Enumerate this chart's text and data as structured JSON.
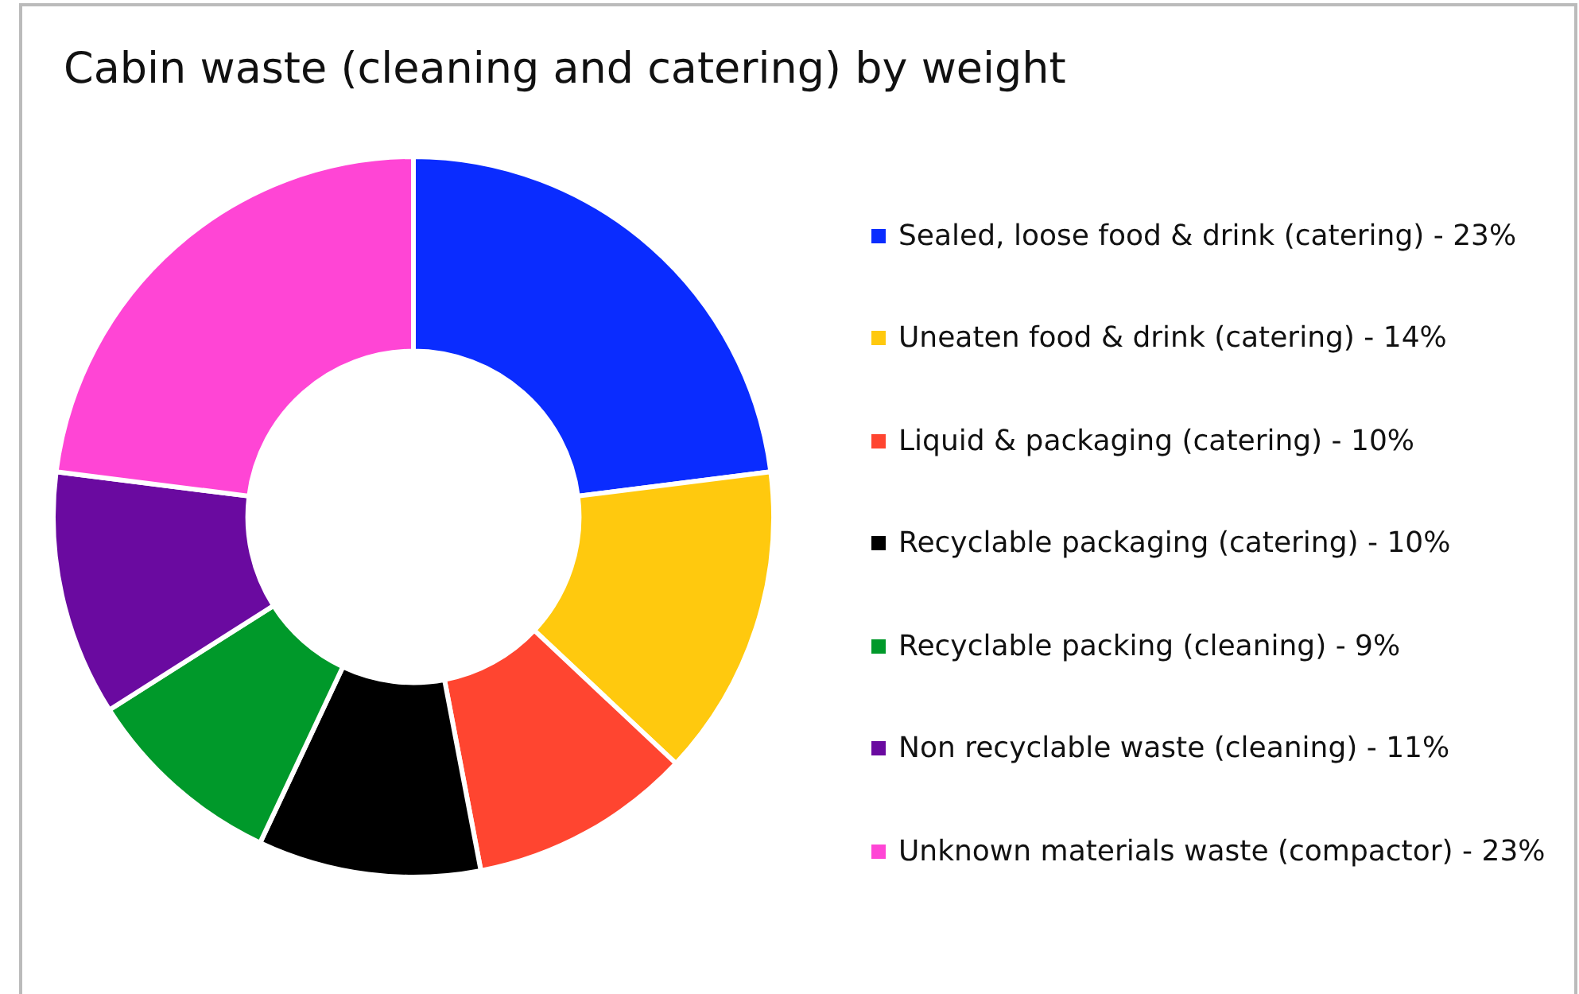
{
  "chart_data": {
    "type": "donut",
    "title": "Cabin waste (cleaning and catering) by weight",
    "categories": [
      "Sealed, loose food & drink (catering) - 23%",
      "Uneaten food & drink (catering) - 14%",
      "Liquid & packaging (catering) - 10%",
      "Recyclable packaging (catering) - 10%",
      "Recyclable packing (cleaning) - 9%",
      "Non recyclable waste (cleaning) - 11%",
      "Unknown materials waste (compactor) - 23%"
    ],
    "values": [
      23,
      14,
      10,
      10,
      9,
      11,
      23
    ],
    "colors": [
      "#0a2cff",
      "#ffc90e",
      "#ff4530",
      "#000000",
      "#00992a",
      "#6a0aa0",
      "#ff45d5"
    ],
    "legend": "right"
  }
}
